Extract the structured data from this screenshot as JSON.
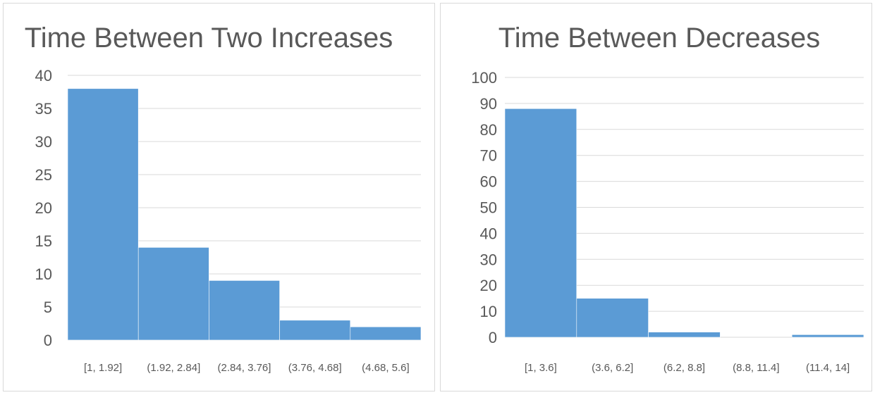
{
  "chart_data": [
    {
      "type": "bar",
      "title": "Time Between Two Increases",
      "categories": [
        "[1, 1.92]",
        "(1.92, 2.84]",
        "(2.84, 3.76]",
        "(3.76, 4.68]",
        "(4.68, 5.6]"
      ],
      "values": [
        38,
        14,
        9,
        3,
        2
      ],
      "ylim": [
        0,
        40
      ],
      "yticks": [
        0,
        5,
        10,
        15,
        20,
        25,
        30,
        35,
        40
      ],
      "xlabel": "",
      "ylabel": "",
      "grid": true,
      "legend": "none",
      "color": "#5b9bd5"
    },
    {
      "type": "bar",
      "title": "Time Between Decreases",
      "categories": [
        "[1, 3.6]",
        "(3.6, 6.2]",
        "(6.2, 8.8]",
        "(8.8, 11.4]",
        "(11.4, 14]"
      ],
      "values": [
        88,
        15,
        2,
        0,
        1
      ],
      "ylim": [
        0,
        100
      ],
      "yticks": [
        0,
        10,
        20,
        30,
        40,
        50,
        60,
        70,
        80,
        90,
        100
      ],
      "xlabel": "",
      "ylabel": "",
      "grid": true,
      "legend": "none",
      "color": "#5b9bd5"
    }
  ]
}
